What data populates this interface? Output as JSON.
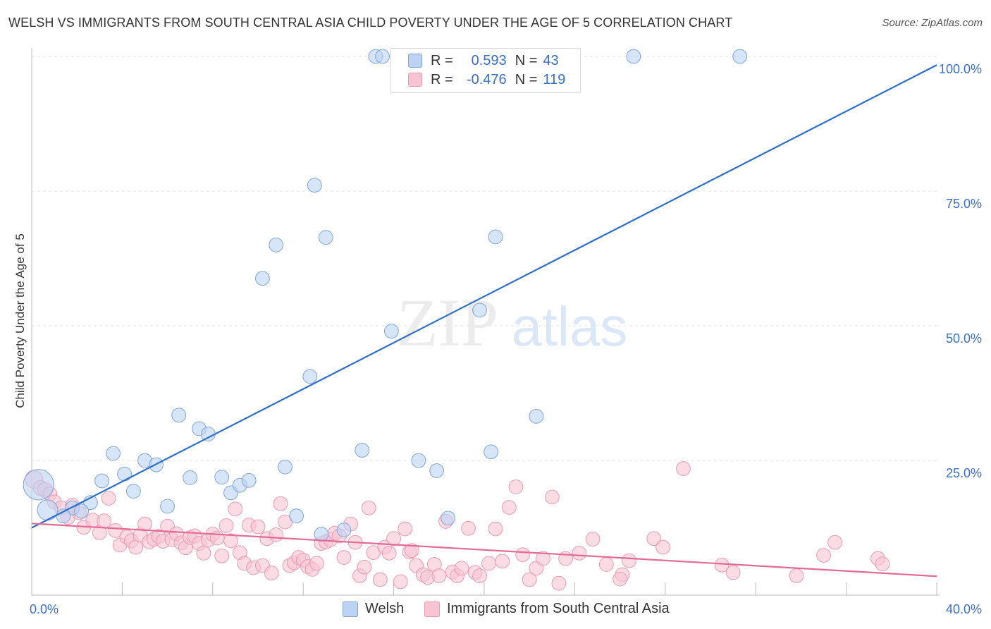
{
  "title": "WELSH VS IMMIGRANTS FROM SOUTH CENTRAL ASIA CHILD POVERTY UNDER THE AGE OF 5 CORRELATION CHART",
  "source": "Source: ZipAtlas.com",
  "watermark": {
    "zip": "ZIP",
    "atlas": "atlas"
  },
  "legend_top": {
    "rows": [
      {
        "r_label": "R =",
        "r_value": "0.593",
        "n_label": "N =",
        "n_value": "43"
      },
      {
        "r_label": "R =",
        "r_value": "-0.476",
        "n_label": "N =",
        "n_value": "119"
      }
    ]
  },
  "legend_bottom": {
    "items": [
      "Welsh",
      "Immigrants from South Central Asia"
    ]
  },
  "colors": {
    "welsh_fill": "#bcd3f3",
    "welsh_stroke": "#7ea4d8",
    "welsh_line": "#2f6fcc",
    "imm_fill": "#f8c4d4",
    "imm_stroke": "#e99ab3",
    "imm_line": "#e46a96",
    "axis_text": "#3a6fc4",
    "grid": "#e3e3e3"
  },
  "chart_data": {
    "type": "scatter",
    "title": "WELSH VS IMMIGRANTS FROM SOUTH CENTRAL ASIA CHILD POVERTY UNDER THE AGE OF 5 CORRELATION CHART",
    "xlabel": "",
    "ylabel": "Child Poverty Under the Age of 5",
    "xlim": [
      0,
      40
    ],
    "ylim": [
      0,
      100
    ],
    "x_ticks": [
      0,
      4,
      8,
      12,
      16,
      20,
      24,
      28,
      32,
      36,
      40
    ],
    "x_tick_labels": {
      "0": "0.0%",
      "40": "40.0%"
    },
    "y_ticks": [
      25,
      50,
      75,
      100
    ],
    "y_tick_labels": [
      "25.0%",
      "50.0%",
      "75.0%",
      "100.0%"
    ],
    "grid": true,
    "series": [
      {
        "name": "Welsh",
        "trend": {
          "x": [
            0,
            40
          ],
          "y": [
            12.5,
            98.4
          ]
        },
        "points": [
          [
            0.3,
            20.5,
            2.4
          ],
          [
            0.7,
            15.8,
            1.6
          ],
          [
            1.8,
            16.2,
            1.1
          ],
          [
            2.6,
            17.2,
            1.1
          ],
          [
            3.1,
            21.2,
            1.1
          ],
          [
            3.6,
            26.3,
            1.1
          ],
          [
            4.1,
            22.5,
            1.1
          ],
          [
            4.5,
            19.3,
            1.1
          ],
          [
            5.0,
            25.0,
            1.1
          ],
          [
            5.5,
            24.2,
            1.1
          ],
          [
            6.0,
            16.5,
            1.1
          ],
          [
            6.5,
            33.4,
            1.1
          ],
          [
            7.0,
            21.8,
            1.1
          ],
          [
            7.4,
            30.9,
            1.1
          ],
          [
            7.8,
            29.9,
            1.1
          ],
          [
            8.4,
            21.9,
            1.1
          ],
          [
            8.8,
            19.0,
            1.1
          ],
          [
            9.2,
            20.4,
            1.1
          ],
          [
            9.6,
            21.3,
            1.1
          ],
          [
            10.2,
            58.8,
            1.1
          ],
          [
            10.8,
            65.0,
            1.1
          ],
          [
            11.2,
            23.8,
            1.1
          ],
          [
            11.7,
            14.7,
            1.1
          ],
          [
            12.3,
            40.6,
            1.1
          ],
          [
            12.5,
            76.1,
            1.1
          ],
          [
            13.0,
            66.4,
            1.1
          ],
          [
            13.8,
            12.1,
            1.1
          ],
          [
            14.6,
            26.9,
            1.1
          ],
          [
            15.2,
            100.0,
            1.1
          ],
          [
            15.5,
            100.0,
            1.1
          ],
          [
            15.9,
            49.0,
            1.1
          ],
          [
            17.1,
            25.0,
            1.1
          ],
          [
            17.9,
            23.1,
            1.1
          ],
          [
            18.4,
            14.3,
            1.1
          ],
          [
            19.8,
            52.9,
            1.1
          ],
          [
            20.3,
            26.6,
            1.1
          ],
          [
            20.5,
            66.5,
            1.1
          ],
          [
            22.3,
            33.2,
            1.1
          ],
          [
            26.6,
            100.0,
            1.1
          ],
          [
            31.3,
            100.0,
            1.1
          ],
          [
            12.8,
            11.3,
            1.1
          ],
          [
            1.4,
            14.7,
            1.1
          ],
          [
            2.2,
            15.6,
            1.1
          ]
        ]
      },
      {
        "name": "Immigrants from South Central Asia",
        "trend": {
          "x": [
            0,
            40
          ],
          "y": [
            13.3,
            3.5
          ]
        },
        "points": [
          [
            0.1,
            21.5,
            1.4
          ],
          [
            0.4,
            19.9,
            1.2
          ],
          [
            0.6,
            19.5,
            1.2
          ],
          [
            0.8,
            18.8,
            1.1
          ],
          [
            1.0,
            17.3,
            1.1
          ],
          [
            1.3,
            16.2,
            1.1
          ],
          [
            1.6,
            14.4,
            1.1
          ],
          [
            1.8,
            16.7,
            1.1
          ],
          [
            2.1,
            15.3,
            1.1
          ],
          [
            2.3,
            12.6,
            1.1
          ],
          [
            2.7,
            13.9,
            1.1
          ],
          [
            3.0,
            11.6,
            1.1
          ],
          [
            3.2,
            13.8,
            1.1
          ],
          [
            3.4,
            18.0,
            1.1
          ],
          [
            3.7,
            12.0,
            1.1
          ],
          [
            3.9,
            9.3,
            1.1
          ],
          [
            4.2,
            10.8,
            1.1
          ],
          [
            4.4,
            10.1,
            1.1
          ],
          [
            4.6,
            8.9,
            1.1
          ],
          [
            4.8,
            11.2,
            1.1
          ],
          [
            5.0,
            13.2,
            1.1
          ],
          [
            5.2,
            9.9,
            1.1
          ],
          [
            5.4,
            10.4,
            1.1
          ],
          [
            5.6,
            10.9,
            1.1
          ],
          [
            5.8,
            10.0,
            1.1
          ],
          [
            6.0,
            12.8,
            1.1
          ],
          [
            6.2,
            10.3,
            1.1
          ],
          [
            6.4,
            11.4,
            1.1
          ],
          [
            6.6,
            9.7,
            1.1
          ],
          [
            6.8,
            8.8,
            1.1
          ],
          [
            7.0,
            10.7,
            1.1
          ],
          [
            7.2,
            11.0,
            1.1
          ],
          [
            7.4,
            9.6,
            1.1
          ],
          [
            7.6,
            7.8,
            1.1
          ],
          [
            7.8,
            10.2,
            1.1
          ],
          [
            8.0,
            11.3,
            1.1
          ],
          [
            8.2,
            10.6,
            1.1
          ],
          [
            8.4,
            7.3,
            1.1
          ],
          [
            8.6,
            12.9,
            1.1
          ],
          [
            8.8,
            10.1,
            1.1
          ],
          [
            9.0,
            16.0,
            1.1
          ],
          [
            9.2,
            7.9,
            1.1
          ],
          [
            9.4,
            5.9,
            1.1
          ],
          [
            9.6,
            13.0,
            1.1
          ],
          [
            9.8,
            5.1,
            1.1
          ],
          [
            10.0,
            12.7,
            1.1
          ],
          [
            10.2,
            5.5,
            1.1
          ],
          [
            10.4,
            10.5,
            1.1
          ],
          [
            10.6,
            4.1,
            1.1
          ],
          [
            10.8,
            11.2,
            1.1
          ],
          [
            11.0,
            17.0,
            1.1
          ],
          [
            11.2,
            13.6,
            1.1
          ],
          [
            11.4,
            5.5,
            1.1
          ],
          [
            11.6,
            6.0,
            1.1
          ],
          [
            11.8,
            7.0,
            1.1
          ],
          [
            12.0,
            6.5,
            1.1
          ],
          [
            12.2,
            5.3,
            1.1
          ],
          [
            12.4,
            4.8,
            1.1
          ],
          [
            12.6,
            5.9,
            1.1
          ],
          [
            12.8,
            9.6,
            1.1
          ],
          [
            13.0,
            9.9,
            1.1
          ],
          [
            13.2,
            10.3,
            1.1
          ],
          [
            13.4,
            11.5,
            1.1
          ],
          [
            13.6,
            11.0,
            1.1
          ],
          [
            13.8,
            7.0,
            1.1
          ],
          [
            14.1,
            13.2,
            1.1
          ],
          [
            14.3,
            9.8,
            1.1
          ],
          [
            14.5,
            3.6,
            1.1
          ],
          [
            14.7,
            5.2,
            1.1
          ],
          [
            14.9,
            16.2,
            1.1
          ],
          [
            15.1,
            7.9,
            1.1
          ],
          [
            15.4,
            2.9,
            1.1
          ],
          [
            15.6,
            8.9,
            1.1
          ],
          [
            15.8,
            7.8,
            1.1
          ],
          [
            16.0,
            10.5,
            1.1
          ],
          [
            16.3,
            2.5,
            1.1
          ],
          [
            16.5,
            12.3,
            1.1
          ],
          [
            16.7,
            8.0,
            1.1
          ],
          [
            17.0,
            5.5,
            1.1
          ],
          [
            17.3,
            3.8,
            1.1
          ],
          [
            17.5,
            3.3,
            1.1
          ],
          [
            17.8,
            5.7,
            1.1
          ],
          [
            18.0,
            3.6,
            1.1
          ],
          [
            18.3,
            13.7,
            1.1
          ],
          [
            18.6,
            4.3,
            1.1
          ],
          [
            18.8,
            3.6,
            1.1
          ],
          [
            19.0,
            5.0,
            1.1
          ],
          [
            19.3,
            12.4,
            1.1
          ],
          [
            19.6,
            4.2,
            1.1
          ],
          [
            19.8,
            3.6,
            1.1
          ],
          [
            20.2,
            5.9,
            1.1
          ],
          [
            20.5,
            12.3,
            1.1
          ],
          [
            20.8,
            6.3,
            1.1
          ],
          [
            21.1,
            16.3,
            1.1
          ],
          [
            21.4,
            20.1,
            1.1
          ],
          [
            21.7,
            7.5,
            1.1
          ],
          [
            22.0,
            2.9,
            1.1
          ],
          [
            22.3,
            5.0,
            1.1
          ],
          [
            22.6,
            6.8,
            1.1
          ],
          [
            23.0,
            18.2,
            1.1
          ],
          [
            23.3,
            2.2,
            1.1
          ],
          [
            23.6,
            6.8,
            1.1
          ],
          [
            24.2,
            7.8,
            1.1
          ],
          [
            24.8,
            10.4,
            1.1
          ],
          [
            25.4,
            5.7,
            1.1
          ],
          [
            26.1,
            3.8,
            1.1
          ],
          [
            26.4,
            6.4,
            1.1
          ],
          [
            27.5,
            10.5,
            1.1
          ],
          [
            27.9,
            8.9,
            1.1
          ],
          [
            28.8,
            23.5,
            1.1
          ],
          [
            30.5,
            5.6,
            1.1
          ],
          [
            31.0,
            4.2,
            1.1
          ],
          [
            33.8,
            3.6,
            1.1
          ],
          [
            35.0,
            7.4,
            1.1
          ],
          [
            35.5,
            9.8,
            1.1
          ],
          [
            37.4,
            6.8,
            1.1
          ],
          [
            37.6,
            5.8,
            1.1
          ],
          [
            26.0,
            3.0,
            1.1
          ],
          [
            16.8,
            8.3,
            1.1
          ]
        ]
      }
    ]
  }
}
